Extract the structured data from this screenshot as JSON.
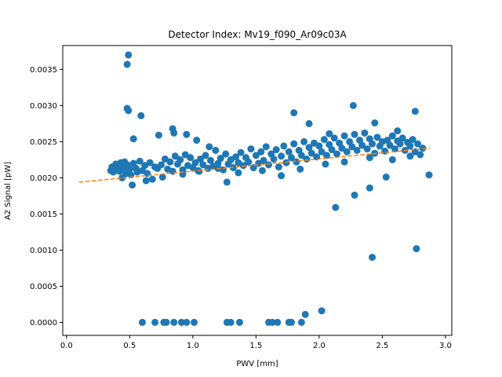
{
  "chart_data": {
    "type": "scatter",
    "title": "Detector Index: Mv19_f090_Ar09c03A",
    "xlabel": "PWV [mm]",
    "ylabel": "A2 Signal [pW]",
    "xlim": [
      -0.03,
      3.05
    ],
    "ylim": [
      -0.00018,
      0.00383
    ],
    "x_ticks": [
      0.0,
      0.5,
      1.0,
      1.5,
      2.0,
      2.5,
      3.0
    ],
    "x_tick_labels": [
      "0.0",
      "0.5",
      "1.0",
      "1.5",
      "2.0",
      "2.5",
      "3.0"
    ],
    "y_ticks": [
      0.0,
      0.0005,
      0.001,
      0.0015,
      0.002,
      0.0025,
      0.003,
      0.0035
    ],
    "y_tick_labels": [
      "0.0000",
      "0.0005",
      "0.0010",
      "0.0015",
      "0.0020",
      "0.0025",
      "0.0030",
      "0.0035"
    ],
    "colors": {
      "points": "#1f77b4",
      "fit": "#ff7f0e"
    },
    "series": [
      {
        "name": "data",
        "kind": "points",
        "points": [
          [
            0.35,
            0.0021
          ],
          [
            0.36,
            0.00215
          ],
          [
            0.37,
            0.00208
          ],
          [
            0.38,
            0.00213
          ],
          [
            0.39,
            0.00219
          ],
          [
            0.4,
            0.00211
          ],
          [
            0.41,
            0.00216
          ],
          [
            0.42,
            0.00209
          ],
          [
            0.43,
            0.00221
          ],
          [
            0.45,
            0.00214
          ],
          [
            0.46,
            0.00222
          ],
          [
            0.47,
            0.00206
          ],
          [
            0.48,
            0.00218
          ],
          [
            0.5,
            0.00212
          ],
          [
            0.51,
            0.00204
          ],
          [
            0.53,
            0.0022
          ],
          [
            0.55,
            0.00213
          ],
          [
            0.56,
            0.00208
          ],
          [
            0.58,
            0.00223
          ],
          [
            0.6,
            0.0021
          ],
          [
            0.62,
            0.00217
          ],
          [
            0.64,
            0.00206
          ],
          [
            0.66,
            0.00221
          ],
          [
            0.68,
            0.00198
          ],
          [
            0.7,
            0.00215
          ],
          [
            0.72,
            0.00213
          ],
          [
            0.75,
            0.00218
          ],
          [
            0.78,
            0.00226
          ],
          [
            0.8,
            0.00212
          ],
          [
            0.82,
            0.00222
          ],
          [
            0.84,
            0.00209
          ],
          [
            0.86,
            0.0023
          ],
          [
            0.88,
            0.00219
          ],
          [
            0.9,
            0.00225
          ],
          [
            0.92,
            0.00211
          ],
          [
            0.94,
            0.00232
          ],
          [
            0.96,
            0.00217
          ],
          [
            0.98,
            0.00228
          ],
          [
            1.0,
            0.00214
          ],
          [
            1.02,
            0.00221
          ],
          [
            1.04,
            0.0021
          ],
          [
            1.06,
            0.00226
          ],
          [
            1.08,
            0.00218
          ],
          [
            1.1,
            0.00231
          ],
          [
            1.12,
            0.00213
          ],
          [
            1.14,
            0.00224
          ],
          [
            1.16,
            0.00216
          ],
          [
            1.18,
            0.00238
          ],
          [
            1.2,
            0.0022
          ],
          [
            1.22,
            0.00227
          ],
          [
            1.24,
            0.00211
          ],
          [
            1.26,
            0.00233
          ],
          [
            1.28,
            0.00219
          ],
          [
            1.3,
            0.00225
          ],
          [
            1.32,
            0.00214
          ],
          [
            1.34,
            0.00229
          ],
          [
            1.36,
            0.00221
          ],
          [
            1.38,
            0.00235
          ],
          [
            1.4,
            0.00217
          ],
          [
            1.42,
            0.00228
          ],
          [
            1.44,
            0.00222
          ],
          [
            1.46,
            0.0024
          ],
          [
            1.48,
            0.00214
          ],
          [
            1.5,
            0.00231
          ],
          [
            1.52,
            0.0022
          ],
          [
            1.54,
            0.00236
          ],
          [
            1.56,
            0.00224
          ],
          [
            1.58,
            0.00243
          ],
          [
            1.6,
            0.00218
          ],
          [
            1.62,
            0.00233
          ],
          [
            1.64,
            0.00226
          ],
          [
            1.66,
            0.00239
          ],
          [
            1.68,
            0.00215
          ],
          [
            1.7,
            0.0023
          ],
          [
            1.72,
            0.00244
          ],
          [
            1.74,
            0.00221
          ],
          [
            1.76,
            0.00236
          ],
          [
            1.78,
            0.00228
          ],
          [
            1.8,
            0.00247
          ],
          [
            1.82,
            0.00222
          ],
          [
            1.84,
            0.00238
          ],
          [
            1.86,
            0.00231
          ],
          [
            1.88,
            0.0025
          ],
          [
            1.9,
            0.00226
          ],
          [
            1.92,
            0.00242
          ],
          [
            1.94,
            0.00234
          ],
          [
            1.96,
            0.00248
          ],
          [
            1.98,
            0.00229
          ],
          [
            2.0,
            0.00244
          ],
          [
            2.02,
            0.00236
          ],
          [
            2.04,
            0.00253
          ],
          [
            2.06,
            0.00231
          ],
          [
            2.08,
            0.00246
          ],
          [
            2.1,
            0.00239
          ],
          [
            2.12,
            0.00255
          ],
          [
            2.14,
            0.00233
          ],
          [
            2.16,
            0.00248
          ],
          [
            2.18,
            0.00241
          ],
          [
            2.2,
            0.00258
          ],
          [
            2.22,
            0.00236
          ],
          [
            2.24,
            0.0025
          ],
          [
            2.26,
            0.00243
          ],
          [
            2.28,
            0.0026
          ],
          [
            2.3,
            0.00238
          ],
          [
            2.32,
            0.00252
          ],
          [
            2.34,
            0.00245
          ],
          [
            2.36,
            0.00262
          ],
          [
            2.38,
            0.0024
          ],
          [
            2.4,
            0.00254
          ],
          [
            2.42,
            0.00247
          ],
          [
            2.44,
            0.00234
          ],
          [
            2.46,
            0.00256
          ],
          [
            2.48,
            0.00244
          ],
          [
            2.5,
            0.0025
          ],
          [
            2.52,
            0.00237
          ],
          [
            2.54,
            0.00252
          ],
          [
            2.56,
            0.00245
          ],
          [
            2.58,
            0.00258
          ],
          [
            2.6,
            0.0024
          ],
          [
            2.62,
            0.00251
          ],
          [
            2.64,
            0.00247
          ],
          [
            2.66,
            0.00255
          ],
          [
            2.68,
            0.00238
          ],
          [
            2.7,
            0.00249
          ],
          [
            2.72,
            0.00244
          ],
          [
            2.74,
            0.00253
          ],
          [
            2.76,
            0.00236
          ],
          [
            2.78,
            0.00247
          ],
          [
            2.8,
            0.00232
          ],
          [
            2.82,
            0.00241
          ],
          [
            0.44,
            0.002
          ],
          [
            0.52,
            0.0019
          ],
          [
            0.63,
            0.00196
          ],
          [
            0.76,
            0.00201
          ],
          [
            0.92,
            0.00205
          ],
          [
            1.05,
            0.00209
          ],
          [
            1.2,
            0.00213
          ],
          [
            1.36,
            0.00207
          ],
          [
            1.55,
            0.0021
          ],
          [
            1.7,
            0.00203
          ],
          [
            1.85,
            0.00212
          ],
          [
            2.05,
            0.00219
          ],
          [
            2.2,
            0.00222
          ],
          [
            2.4,
            0.00228
          ],
          [
            2.58,
            0.00225
          ],
          [
            2.72,
            0.0023
          ],
          [
            0.48,
            0.00357
          ],
          [
            0.49,
            0.0037
          ],
          [
            0.48,
            0.00296
          ],
          [
            0.49,
            0.00293
          ],
          [
            0.53,
            0.00254
          ],
          [
            0.59,
            0.00286
          ],
          [
            0.73,
            0.00259
          ],
          [
            0.84,
            0.00268
          ],
          [
            0.85,
            0.00262
          ],
          [
            0.95,
            0.0026
          ],
          [
            1.03,
            0.00252
          ],
          [
            1.13,
            0.00243
          ],
          [
            1.27,
            0.00194
          ],
          [
            1.8,
            0.0029
          ],
          [
            1.92,
            0.00275
          ],
          [
            2.08,
            0.00261
          ],
          [
            2.13,
            0.00159
          ],
          [
            2.27,
            0.003
          ],
          [
            2.28,
            0.00176
          ],
          [
            2.4,
            0.00186
          ],
          [
            2.44,
            0.00276
          ],
          [
            2.53,
            0.00201
          ],
          [
            2.62,
            0.00265
          ],
          [
            2.76,
            0.00292
          ],
          [
            2.77,
            0.00102
          ],
          [
            2.42,
            0.0009
          ],
          [
            2.87,
            0.00204
          ],
          [
            0.6,
            0.0
          ],
          [
            0.7,
            0.0
          ],
          [
            0.77,
            0.0
          ],
          [
            0.79,
            0.0
          ],
          [
            0.85,
            0.0
          ],
          [
            0.91,
            0.0
          ],
          [
            0.95,
            0.0
          ],
          [
            1.01,
            0.0
          ],
          [
            1.27,
            0.0
          ],
          [
            1.3,
            0.0
          ],
          [
            1.37,
            0.0
          ],
          [
            1.6,
            0.0
          ],
          [
            1.63,
            0.0
          ],
          [
            1.67,
            0.0
          ],
          [
            1.76,
            0.0
          ],
          [
            1.78,
            0.0
          ],
          [
            1.86,
            0.0
          ],
          [
            1.89,
            0.00011
          ],
          [
            2.02,
            0.00016
          ]
        ]
      },
      {
        "name": "fit",
        "kind": "dashed-line",
        "x": [
          0.1,
          2.88
        ],
        "y": [
          0.00194,
          0.00241
        ]
      }
    ]
  }
}
